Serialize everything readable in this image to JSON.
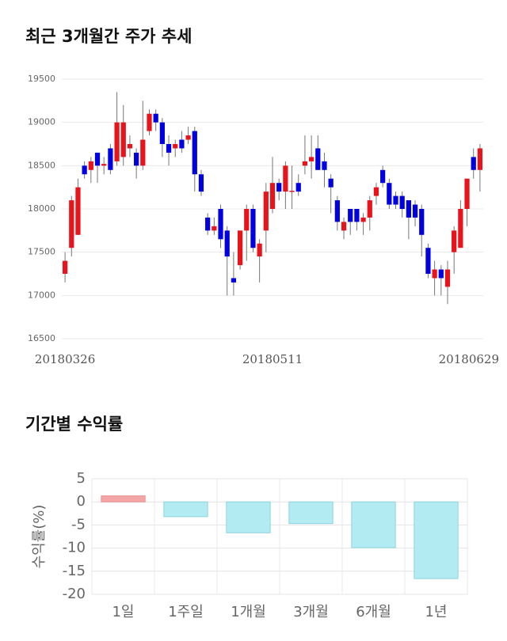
{
  "chart_data": [
    {
      "type": "candlestick",
      "title": "최근 3개월간 주가 추세",
      "categories": [
        "20180326",
        null,
        null,
        null,
        null,
        null,
        null,
        null,
        null,
        null,
        null,
        null,
        null,
        null,
        null,
        null,
        null,
        null,
        null,
        null,
        null,
        null,
        null,
        null,
        null,
        null,
        null,
        null,
        null,
        null,
        null,
        null,
        "20180511",
        null,
        null,
        null,
        null,
        null,
        null,
        null,
        null,
        null,
        null,
        null,
        null,
        null,
        null,
        null,
        null,
        null,
        null,
        null,
        null,
        null,
        null,
        null,
        null,
        null,
        null,
        null,
        null,
        null,
        null,
        null,
        "20180629"
      ],
      "open": [
        17250,
        17550,
        17700,
        18500,
        18450,
        18650,
        18500,
        18700,
        18550,
        18600,
        18700,
        18650,
        18500,
        18900,
        19100,
        19000,
        18750,
        18700,
        18800,
        18800,
        18900,
        18400,
        17900,
        17750,
        18000,
        17750,
        17200,
        17350,
        17750,
        18000,
        17450,
        17750,
        18000,
        18300,
        18200,
        18200,
        18300,
        18500,
        18550,
        18700,
        18550,
        18350,
        18100,
        17750,
        18000,
        18000,
        17850,
        17900,
        18150,
        18450,
        18300,
        18150,
        18150,
        18100,
        18050,
        18000,
        17550,
        17200,
        17300,
        17100,
        17500,
        17550,
        18000,
        18600,
        18450
      ],
      "high": [
        17500,
        18150,
        18350,
        18550,
        18600,
        18650,
        18600,
        18750,
        19350,
        19200,
        18850,
        18700,
        19250,
        19150,
        19150,
        19050,
        18850,
        18800,
        18900,
        18950,
        18950,
        18450,
        17950,
        17900,
        18050,
        17800,
        17500,
        17750,
        18050,
        18050,
        17650,
        18300,
        18600,
        18350,
        18550,
        18500,
        18400,
        18850,
        18850,
        18850,
        18650,
        18400,
        18150,
        17900,
        18000,
        18000,
        17950,
        18150,
        18300,
        18500,
        18350,
        18200,
        18200,
        18100,
        18100,
        18050,
        17600,
        17400,
        17350,
        17400,
        17800,
        18100,
        18350,
        18700,
        18750
      ],
      "low": [
        17150,
        17450,
        17700,
        18350,
        18300,
        18300,
        18400,
        18400,
        18500,
        18500,
        18600,
        18350,
        18450,
        18850,
        18900,
        18600,
        18500,
        18600,
        18650,
        18750,
        18200,
        18150,
        17700,
        17700,
        17550,
        17000,
        17000,
        17300,
        17400,
        17500,
        17150,
        17500,
        17950,
        18100,
        18000,
        18000,
        18150,
        18400,
        18350,
        18450,
        18250,
        17950,
        17750,
        17650,
        17700,
        17750,
        17700,
        17750,
        18050,
        18250,
        18000,
        18000,
        17900,
        17650,
        17800,
        17450,
        17200,
        17000,
        17000,
        16900,
        17250,
        17550,
        17800,
        18350,
        18200
      ],
      "close": [
        17400,
        18100,
        18250,
        18400,
        18550,
        18500,
        18520,
        18450,
        19000,
        19000,
        18750,
        18500,
        18800,
        19100,
        19000,
        18750,
        18650,
        18750,
        18700,
        18850,
        18400,
        18200,
        17750,
        17800,
        17650,
        17450,
        17150,
        17750,
        18000,
        17550,
        17600,
        18200,
        18300,
        18200,
        18500,
        18210,
        18200,
        18550,
        18600,
        18450,
        18450,
        18250,
        17850,
        17850,
        17850,
        17850,
        17900,
        18100,
        18250,
        18300,
        18050,
        18050,
        18000,
        17900,
        17900,
        17700,
        17250,
        17300,
        17200,
        17300,
        17750,
        18000,
        18350,
        18450,
        18700
      ],
      "up_color": "#e8141c",
      "down_color": "#0000e0",
      "ylim": [
        16500,
        19500
      ],
      "yticks": [
        16500,
        17000,
        17500,
        18000,
        18500,
        19000,
        19500
      ],
      "grid": true
    },
    {
      "type": "bar",
      "title": "기간별 수익률",
      "y_label": "수익률(%)",
      "categories": [
        "1일",
        "1주일",
        "1개월",
        "3개월",
        "6개월",
        "1년"
      ],
      "values": [
        1.3,
        -3.2,
        -6.7,
        -4.7,
        -9.9,
        -16.6
      ],
      "positive_color": "#f4a6a6",
      "negative_color": "#b3ebf3",
      "ylim": [
        -20,
        5
      ],
      "yticks": [
        5,
        0,
        -5,
        -10,
        -15,
        -20
      ],
      "grid": true
    }
  ]
}
